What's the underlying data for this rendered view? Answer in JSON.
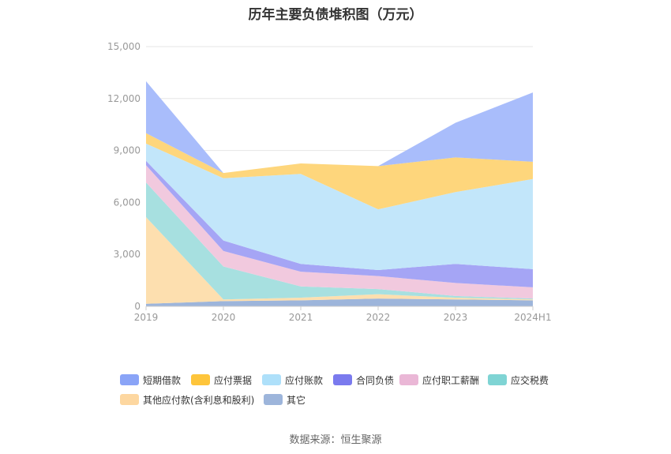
{
  "chart_data": {
    "type": "area",
    "stacked": true,
    "title": "历年主要负债堆积图（万元）",
    "categories": [
      "2019",
      "2020",
      "2021",
      "2022",
      "2023",
      "2024H1"
    ],
    "yticks": [
      "0",
      "3,000",
      "6,000",
      "9,000",
      "12,000",
      "15,000"
    ],
    "ylim": [
      0,
      15000
    ],
    "grid": true,
    "legend_position": "bottom",
    "series": [
      {
        "name": "其它",
        "color": "#9db5db",
        "values": [
          150,
          300,
          350,
          450,
          400,
          350
        ]
      },
      {
        "name": "其他应付款(含利息和股利)",
        "color": "#fddfaf",
        "values": [
          5000,
          100,
          150,
          250,
          100,
          50
        ]
      },
      {
        "name": "应交税费",
        "color": "#a7e0e0",
        "values": [
          2000,
          1900,
          650,
          300,
          100,
          50
        ]
      },
      {
        "name": "应付职工薪酬",
        "color": "#f1c9de",
        "values": [
          1000,
          900,
          850,
          750,
          750,
          650
        ]
      },
      {
        "name": "合同负债",
        "color": "#a5a5f5",
        "values": [
          250,
          600,
          450,
          350,
          1100,
          1050
        ]
      },
      {
        "name": "应付账款",
        "color": "#c2e6fa",
        "values": [
          1000,
          3600,
          5200,
          3500,
          4150,
          5200
        ]
      },
      {
        "name": "应付票据",
        "color": "#fed67c",
        "values": [
          600,
          300,
          600,
          2500,
          2000,
          1000
        ]
      },
      {
        "name": "短期借款",
        "color": "#a9bdfb",
        "values": [
          3000,
          0,
          0,
          0,
          2000,
          4000
        ]
      }
    ],
    "legend": [
      {
        "name": "短期借款",
        "color": "#8aa4f7"
      },
      {
        "name": "应付票据",
        "color": "#fec53b"
      },
      {
        "name": "应付账款",
        "color": "#aee0fa"
      },
      {
        "name": "合同负债",
        "color": "#7a7aee"
      },
      {
        "name": "应付职工薪酬",
        "color": "#eab7d6"
      },
      {
        "name": "应交税费",
        "color": "#7fd4d4"
      },
      {
        "name": "其他应付款(含利息和股利)",
        "color": "#fdd7a0"
      },
      {
        "name": "其它",
        "color": "#9db5db"
      }
    ]
  },
  "source": "数据来源：恒生聚源"
}
